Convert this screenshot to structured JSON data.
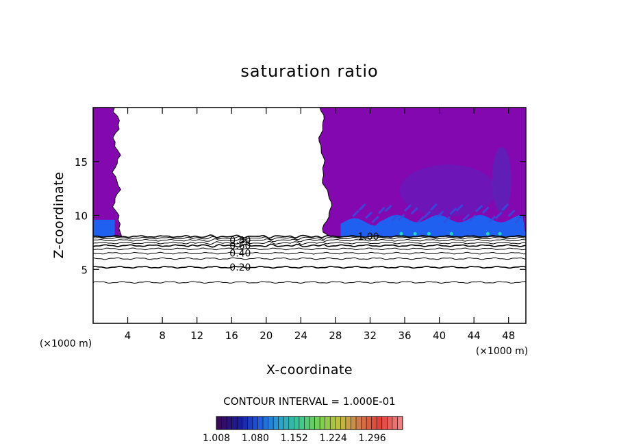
{
  "chart_data": {
    "type": "heatmap",
    "title": "saturation ratio",
    "xlabel": "X-coordinate",
    "ylabel": "Z-coordinate",
    "x_unit_left": "(×1000 m)",
    "x_unit_right": "(×1000 m)",
    "xlim": [
      0,
      50
    ],
    "ylim": [
      0,
      20
    ],
    "xticks": [
      4,
      8,
      12,
      16,
      20,
      24,
      28,
      32,
      36,
      40,
      44,
      48
    ],
    "yticks": [
      5,
      10,
      15
    ],
    "contour_interval_text": "CONTOUR INTERVAL = 1.000E-01",
    "contours": [
      {
        "level": 0.1,
        "label": "",
        "z": 3.8
      },
      {
        "level": 0.2,
        "label": "0.20",
        "z": 5.2
      },
      {
        "level": 0.3,
        "label": "",
        "z": 6.0
      },
      {
        "level": 0.4,
        "label": "0.40",
        "z": 6.5
      },
      {
        "level": 0.5,
        "label": "",
        "z": 6.9
      },
      {
        "level": 0.6,
        "label": "0.60",
        "z": 7.2
      },
      {
        "level": 0.7,
        "label": "",
        "z": 7.45
      },
      {
        "level": 0.8,
        "label": "0.80",
        "z": 7.7
      },
      {
        "level": 0.9,
        "label": "",
        "z": 7.9
      },
      {
        "level": 1.0,
        "label": "1.00",
        "z": 8.05
      }
    ],
    "shaded_regions": {
      "supersaturated_left_x": [
        0,
        2.7
      ],
      "supersaturated_right_x": [
        27,
        50
      ],
      "cloud_base_z": 8.05,
      "top_z": 20
    },
    "colorbar": {
      "tick_labels": [
        "1.008",
        "1.080",
        "1.152",
        "1.224",
        "1.296"
      ],
      "min": 1.008,
      "max": 1.35,
      "colors": [
        "#3a0a5a",
        "#1a1a9a",
        "#1e5ae0",
        "#2aa0d0",
        "#3cc890",
        "#7ad050",
        "#c0c040",
        "#d07848",
        "#e04038",
        "#f08080"
      ]
    },
    "fill_colors": {
      "violet": "#8408b0",
      "indigo": "#6818b8",
      "blue": "#2060f0",
      "cyan": "#20d8c0"
    }
  }
}
